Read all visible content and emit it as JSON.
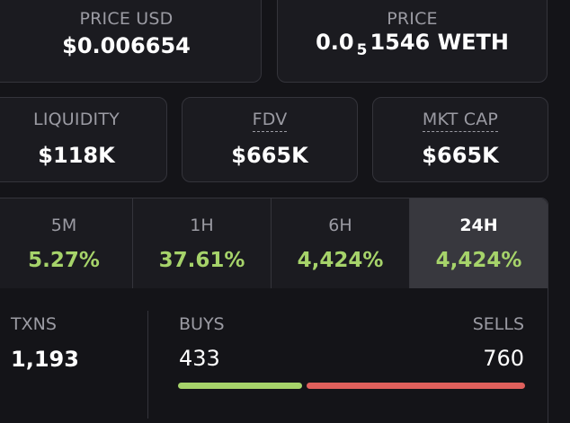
{
  "price_usd": {
    "label": "PRICE USD",
    "value": "$0.006654"
  },
  "price_native": {
    "label": "PRICE",
    "prefix": "0.0",
    "subscript": "5",
    "digits": "1546",
    "unit": "WETH"
  },
  "liquidity": {
    "label": "LIQUIDITY",
    "value": "$118K"
  },
  "fdv": {
    "label": "FDV",
    "value": "$665K"
  },
  "mkt_cap": {
    "label": "MKT CAP",
    "value": "$665K"
  },
  "periods": [
    {
      "label": "5M",
      "change": "5.27%"
    },
    {
      "label": "1H",
      "change": "37.61%"
    },
    {
      "label": "6H",
      "change": "4,424%"
    },
    {
      "label": "24H",
      "change": "4,424%",
      "active": true
    }
  ],
  "txns": {
    "label": "TXNS",
    "total": "1,193",
    "buys_label": "BUYS",
    "buys": "433",
    "sells_label": "SELLS",
    "sells": "760",
    "buy_fraction": 0.363
  },
  "colors": {
    "positive": "#a6d36a",
    "buy_bar": "#a6d36a",
    "sell_bar": "#e0605c",
    "active_tab": "#38383e"
  }
}
